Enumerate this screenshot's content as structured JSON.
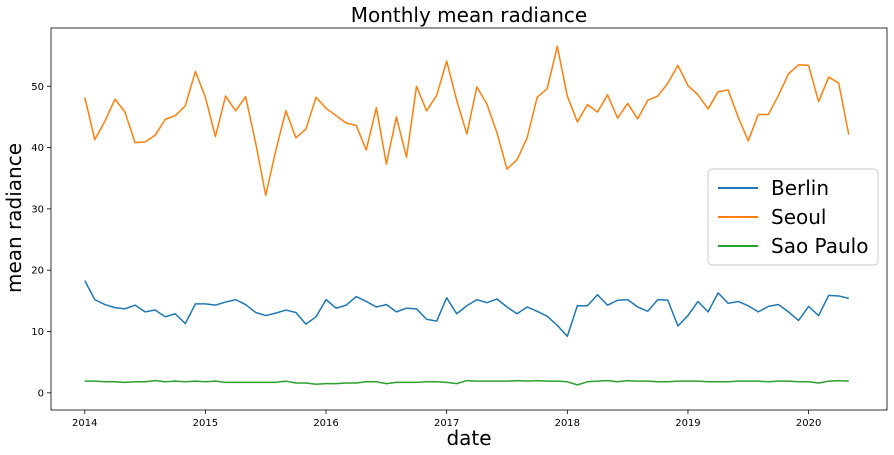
{
  "chart_data": {
    "type": "line",
    "title": "Monthly mean radiance",
    "xlabel": "date",
    "ylabel": "mean radiance",
    "xlim": [
      2013.72,
      2020.65
    ],
    "ylim": [
      -2.8,
      59.5
    ],
    "x_ticks": [
      2014,
      2015,
      2016,
      2017,
      2018,
      2019,
      2020
    ],
    "y_ticks": [
      0,
      10,
      20,
      30,
      40,
      50
    ],
    "grid": false,
    "legend_position": "center-right",
    "x": [
      2014.0,
      2014.083,
      2014.167,
      2014.25,
      2014.333,
      2014.417,
      2014.5,
      2014.583,
      2014.667,
      2014.75,
      2014.833,
      2014.917,
      2015.0,
      2015.083,
      2015.167,
      2015.25,
      2015.333,
      2015.417,
      2015.5,
      2015.583,
      2015.667,
      2015.75,
      2015.833,
      2015.917,
      2016.0,
      2016.083,
      2016.167,
      2016.25,
      2016.333,
      2016.417,
      2016.5,
      2016.583,
      2016.667,
      2016.75,
      2016.833,
      2016.917,
      2017.0,
      2017.083,
      2017.167,
      2017.25,
      2017.333,
      2017.417,
      2017.5,
      2017.583,
      2017.667,
      2017.75,
      2017.833,
      2017.917,
      2018.0,
      2018.083,
      2018.167,
      2018.25,
      2018.333,
      2018.417,
      2018.5,
      2018.583,
      2018.667,
      2018.75,
      2018.833,
      2018.917,
      2019.0,
      2019.083,
      2019.167,
      2019.25,
      2019.333,
      2019.417,
      2019.5,
      2019.583,
      2019.667,
      2019.75,
      2019.833,
      2019.917,
      2020.0,
      2020.083,
      2020.167,
      2020.25,
      2020.333
    ],
    "series": [
      {
        "name": "Berlin",
        "color": "#1f77b4",
        "values": [
          18.3,
          15.2,
          14.4,
          13.9,
          13.7,
          14.3,
          13.2,
          13.5,
          12.4,
          12.9,
          11.3,
          14.5,
          14.5,
          14.3,
          14.8,
          15.2,
          14.4,
          13.1,
          12.6,
          13.0,
          13.5,
          13.1,
          11.2,
          12.4,
          15.2,
          13.8,
          14.3,
          15.7,
          14.9,
          14.0,
          14.4,
          13.2,
          13.8,
          13.7,
          12.0,
          11.7,
          15.5,
          12.9,
          14.2,
          15.2,
          14.7,
          15.3,
          14.0,
          12.9,
          14.0,
          13.3,
          12.5,
          11.0,
          9.2,
          14.2,
          14.2,
          16.0,
          14.3,
          15.1,
          15.2,
          14.0,
          13.3,
          15.2,
          15.1,
          10.9,
          12.6,
          14.9,
          13.2,
          16.3,
          14.6,
          14.9,
          14.2,
          13.2,
          14.1,
          14.4,
          13.2,
          11.8,
          14.1,
          12.6,
          15.9,
          15.8,
          15.4
        ]
      },
      {
        "name": "Seoul",
        "color": "#ff7f0e",
        "values": [
          48.2,
          41.3,
          44.3,
          47.9,
          45.8,
          40.8,
          40.9,
          42.0,
          44.6,
          45.2,
          46.8,
          52.4,
          48.2,
          41.8,
          48.4,
          46.0,
          48.3,
          40.7,
          32.2,
          39.5,
          46.0,
          41.6,
          43.0,
          48.2,
          46.4,
          45.2,
          44.0,
          43.6,
          39.6,
          46.5,
          37.3,
          45.0,
          38.4,
          50.0,
          46.0,
          48.5,
          54.1,
          47.7,
          42.2,
          49.9,
          47.1,
          42.4,
          36.5,
          38.0,
          41.6,
          48.2,
          49.6,
          56.5,
          48.4,
          44.2,
          47.0,
          45.8,
          48.6,
          44.8,
          47.2,
          44.7,
          47.7,
          48.4,
          50.5,
          53.4,
          50.1,
          48.6,
          46.3,
          49.1,
          49.4,
          44.9,
          41.1,
          45.4,
          45.4,
          48.5,
          52.0,
          53.5,
          53.4,
          47.5,
          51.5,
          50.5,
          42.1
        ]
      },
      {
        "name": "Sao Paulo",
        "color": "#2ca02c",
        "values": [
          1.9,
          1.9,
          1.8,
          1.8,
          1.7,
          1.8,
          1.8,
          2.0,
          1.8,
          1.9,
          1.8,
          1.9,
          1.8,
          1.9,
          1.7,
          1.7,
          1.7,
          1.7,
          1.7,
          1.7,
          1.9,
          1.6,
          1.6,
          1.4,
          1.5,
          1.5,
          1.6,
          1.6,
          1.8,
          1.8,
          1.5,
          1.7,
          1.7,
          1.7,
          1.8,
          1.8,
          1.7,
          1.5,
          2.0,
          1.9,
          1.9,
          1.9,
          1.9,
          2.0,
          1.9,
          2.0,
          1.9,
          1.9,
          1.8,
          1.3,
          1.8,
          1.9,
          2.0,
          1.8,
          2.0,
          1.9,
          1.9,
          1.8,
          1.8,
          1.9,
          1.9,
          1.9,
          1.8,
          1.8,
          1.8,
          1.9,
          1.9,
          1.9,
          1.8,
          1.9,
          1.9,
          1.8,
          1.8,
          1.6,
          1.9,
          2.0,
          1.9
        ]
      }
    ]
  }
}
